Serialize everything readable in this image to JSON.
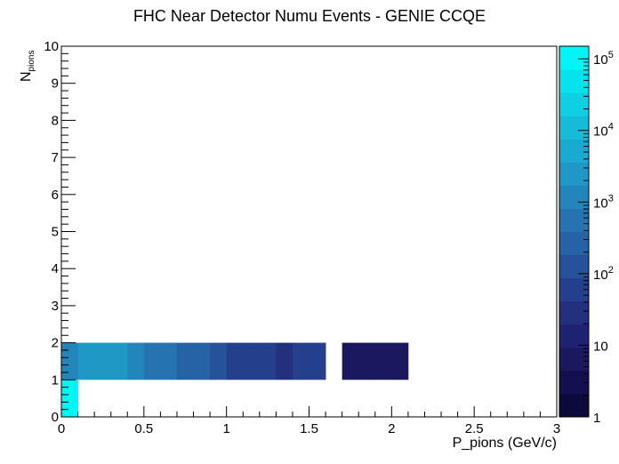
{
  "chart_data": {
    "type": "heatmap",
    "title": "FHC Near Detector Numu Events - GENIE CCQE",
    "xlabel": "P_pions (GeV/c)",
    "ylabel": {
      "main": "N",
      "sub": "pions"
    },
    "xlim": [
      0,
      3
    ],
    "ylim": [
      0,
      10
    ],
    "x_bin_width": 0.1,
    "y_bin_width": 1,
    "x_ticks": [
      "0",
      "0.5",
      "1",
      "1.5",
      "2",
      "2.5",
      "3"
    ],
    "y_ticks": [
      "0",
      "1",
      "2",
      "3",
      "4",
      "5",
      "6",
      "7",
      "8",
      "9",
      "10"
    ],
    "z_scale": "log",
    "zlim": [
      1,
      150000
    ],
    "z_ticks": [
      {
        "value": 1,
        "base": "1",
        "exp": ""
      },
      {
        "value": 10,
        "base": "10",
        "exp": ""
      },
      {
        "value": 100,
        "base": "10",
        "exp": "2"
      },
      {
        "value": 1000,
        "base": "10",
        "exp": "3"
      },
      {
        "value": 10000,
        "base": "10",
        "exp": "4"
      },
      {
        "value": 100000,
        "base": "10",
        "exp": "5"
      }
    ],
    "palette": [
      "#0b0a3a",
      "#14104f",
      "#1a1960",
      "#1f2270",
      "#22307e",
      "#24408c",
      "#265299",
      "#2663a6",
      "#2574b1",
      "#2286bc",
      "#1f98c5",
      "#1aaacf",
      "#15bcd8",
      "#0fcfe2",
      "#07e3ec",
      "#00f6f6"
    ],
    "cells": [
      {
        "x": 0.0,
        "y": 0,
        "z": 150000
      },
      {
        "x": 0.0,
        "y": 1,
        "z": 1500
      },
      {
        "x": 0.1,
        "y": 1,
        "z": 3000
      },
      {
        "x": 0.2,
        "y": 1,
        "z": 1800
      },
      {
        "x": 0.3,
        "y": 1,
        "z": 1800
      },
      {
        "x": 0.4,
        "y": 1,
        "z": 1200
      },
      {
        "x": 0.5,
        "y": 1,
        "z": 400
      },
      {
        "x": 0.6,
        "y": 1,
        "z": 400
      },
      {
        "x": 0.7,
        "y": 1,
        "z": 250
      },
      {
        "x": 0.8,
        "y": 1,
        "z": 250
      },
      {
        "x": 0.9,
        "y": 1,
        "z": 100
      },
      {
        "x": 1.0,
        "y": 1,
        "z": 45
      },
      {
        "x": 1.1,
        "y": 1,
        "z": 45
      },
      {
        "x": 1.2,
        "y": 1,
        "z": 45
      },
      {
        "x": 1.3,
        "y": 1,
        "z": 30
      },
      {
        "x": 1.4,
        "y": 1,
        "z": 60
      },
      {
        "x": 1.5,
        "y": 1,
        "z": 60
      },
      {
        "x": 1.7,
        "y": 1,
        "z": 5
      },
      {
        "x": 1.8,
        "y": 1,
        "z": 5
      },
      {
        "x": 1.9,
        "y": 1,
        "z": 5
      },
      {
        "x": 2.0,
        "y": 1,
        "z": 5
      }
    ]
  }
}
